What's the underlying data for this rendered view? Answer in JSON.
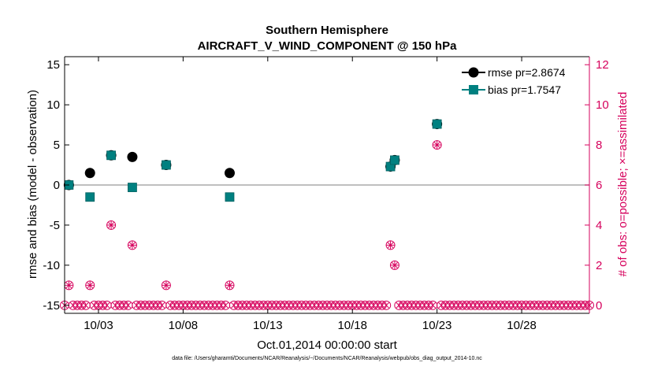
{
  "chart_data": {
    "type": "scatter",
    "title": [
      "Southern Hemisphere",
      "AIRCRAFT_V_WIND_COMPONENT @ 150 hPa"
    ],
    "xlabel": "Oct.01,2014 00:00:00 start",
    "ylabel": "rmse and bias (model - observation)",
    "ylabel_right": "# of obs: o=possible; ×=assimilated",
    "footnote": "data file: /Users/gharamti/Documents/NCAR/Reanalysis/~/Documents/NCAR/Reanalysis/webpub/obs_diag_output_2014-10.nc",
    "x_range_days": [
      1,
      32
    ],
    "ylim": [
      -16,
      16
    ],
    "ylim_right": [
      -0.4,
      12.4
    ],
    "x_ticks": [
      {
        "day": 3,
        "label": "10/03"
      },
      {
        "day": 8,
        "label": "10/08"
      },
      {
        "day": 13,
        "label": "10/13"
      },
      {
        "day": 18,
        "label": "10/18"
      },
      {
        "day": 23,
        "label": "10/23"
      },
      {
        "day": 28,
        "label": "10/28"
      }
    ],
    "y_ticks": [
      -15,
      -10,
      -5,
      0,
      5,
      10,
      15
    ],
    "y_ticks_right": [
      0,
      2,
      4,
      6,
      8,
      10,
      12
    ],
    "grid": false,
    "zero_line": true,
    "legend_position": "top-right",
    "colors": {
      "rmse": "#000000",
      "bias": "#008080",
      "obs": "#d6005c",
      "zero": "#aaaaaa"
    },
    "series": [
      {
        "name": "rmse pr=2.8674",
        "key": "rmse",
        "x": [
          1.25,
          2.5,
          3.75,
          5.0,
          7.0,
          10.75,
          20.25,
          20.5,
          23.0
        ],
        "y": [
          0.0,
          1.5,
          3.7,
          3.5,
          2.5,
          1.5,
          2.3,
          3.1,
          7.6
        ]
      },
      {
        "name": "bias pr=1.7547",
        "key": "bias",
        "x": [
          1.25,
          2.5,
          3.75,
          5.0,
          7.0,
          10.75,
          20.25,
          20.5,
          23.0
        ],
        "y": [
          0.0,
          -1.5,
          3.7,
          -0.3,
          2.5,
          -1.5,
          2.3,
          3.1,
          7.6
        ]
      }
    ],
    "obs_counts": {
      "name": "# of obs",
      "x_start": 1.0,
      "x_step": 0.25,
      "nonzero": [
        {
          "x": 1.25,
          "count": 1
        },
        {
          "x": 2.5,
          "count": 1
        },
        {
          "x": 3.75,
          "count": 4
        },
        {
          "x": 5.0,
          "count": 3
        },
        {
          "x": 7.0,
          "count": 1
        },
        {
          "x": 10.75,
          "count": 1
        },
        {
          "x": 20.25,
          "count": 3
        },
        {
          "x": 20.5,
          "count": 2
        },
        {
          "x": 23.0,
          "count": 8
        }
      ]
    }
  }
}
